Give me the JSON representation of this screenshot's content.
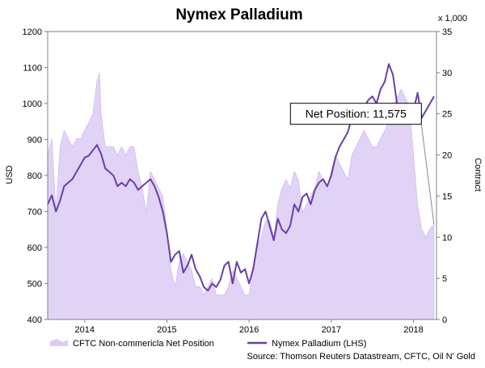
{
  "chart_data": {
    "type": "line",
    "title": "Nymex Palladium",
    "ylabel": "USD",
    "y2label": "Contract",
    "y2unit": "x 1,000",
    "ylim": [
      400,
      1200
    ],
    "yticks": [
      400,
      500,
      600,
      700,
      800,
      900,
      1000,
      1100,
      1200
    ],
    "y2lim": [
      0,
      35
    ],
    "y2ticks": [
      0,
      5,
      10,
      15,
      20,
      25,
      30,
      35
    ],
    "xlim": [
      2013.55,
      2018.28
    ],
    "xticks": [
      {
        "x": 2014.0,
        "label": "2014"
      },
      {
        "x": 2015.0,
        "label": "2015"
      },
      {
        "x": 2016.0,
        "label": "2016"
      },
      {
        "x": 2017.0,
        "label": "2017"
      },
      {
        "x": 2018.0,
        "label": "2018"
      }
    ],
    "grid": false,
    "legend_position": "bottom",
    "annotation": {
      "text": "Net Position: 11,575",
      "target": [
        2018.25,
        11.575
      ],
      "label_anchor": [
        2017.3,
        25
      ]
    },
    "source": "Source: Thomson Reuters Datastream, CFTC, Oil N' Gold",
    "series": [
      {
        "name": "CFTC Non-commericla Net Position",
        "type": "area",
        "axis": "right",
        "color": "#dccbf5",
        "x": [
          2013.55,
          2013.6,
          2013.65,
          2013.7,
          2013.75,
          2013.8,
          2013.85,
          2013.9,
          2013.95,
          2014.0,
          2014.05,
          2014.1,
          2014.15,
          2014.18,
          2014.2,
          2014.25,
          2014.3,
          2014.35,
          2014.4,
          2014.45,
          2014.5,
          2014.55,
          2014.6,
          2014.65,
          2014.7,
          2014.75,
          2014.8,
          2014.85,
          2014.9,
          2014.95,
          2015.0,
          2015.05,
          2015.1,
          2015.15,
          2015.2,
          2015.25,
          2015.3,
          2015.35,
          2015.4,
          2015.45,
          2015.5,
          2015.55,
          2015.6,
          2015.65,
          2015.7,
          2015.75,
          2015.8,
          2015.85,
          2015.9,
          2015.95,
          2016.0,
          2016.05,
          2016.1,
          2016.15,
          2016.2,
          2016.25,
          2016.3,
          2016.35,
          2016.4,
          2016.45,
          2016.5,
          2016.55,
          2016.6,
          2016.65,
          2016.7,
          2016.75,
          2016.8,
          2016.85,
          2016.9,
          2016.95,
          2017.0,
          2017.05,
          2017.1,
          2017.15,
          2017.2,
          2017.25,
          2017.3,
          2017.35,
          2017.4,
          2017.45,
          2017.5,
          2017.55,
          2017.6,
          2017.65,
          2017.7,
          2017.75,
          2017.8,
          2017.85,
          2017.9,
          2017.95,
          2018.0,
          2018.05,
          2018.1,
          2018.15,
          2018.2,
          2018.25
        ],
        "values": [
          20,
          22,
          13,
          21,
          23,
          22,
          21,
          22,
          22,
          23,
          24,
          25,
          29,
          30,
          25,
          21,
          21,
          21,
          20,
          21,
          20,
          21,
          21,
          18,
          16,
          13,
          18,
          17,
          16,
          15,
          11,
          6,
          4,
          7,
          8,
          7,
          6,
          4,
          4,
          3,
          4,
          5,
          3,
          3,
          3,
          4,
          6,
          5,
          4,
          3,
          3,
          6,
          9,
          10,
          12,
          12,
          10,
          14,
          16,
          17,
          16,
          18,
          17,
          13,
          14,
          15,
          16,
          18,
          17,
          16,
          18,
          20,
          19,
          18,
          17,
          20,
          21,
          22,
          23,
          22,
          21,
          21,
          22,
          23,
          24,
          26,
          27,
          28,
          27,
          26,
          20,
          14,
          11,
          10,
          11,
          11.575
        ]
      },
      {
        "name": "Nymex Palladium (LHS)",
        "type": "line",
        "axis": "left",
        "color": "#6a3fa6",
        "x": [
          2013.55,
          2013.6,
          2013.65,
          2013.7,
          2013.75,
          2013.8,
          2013.85,
          2013.9,
          2013.95,
          2014.0,
          2014.05,
          2014.1,
          2014.15,
          2014.2,
          2014.25,
          2014.3,
          2014.35,
          2014.4,
          2014.45,
          2014.5,
          2014.55,
          2014.6,
          2014.65,
          2014.7,
          2014.75,
          2014.8,
          2014.85,
          2014.9,
          2014.95,
          2015.0,
          2015.05,
          2015.1,
          2015.15,
          2015.2,
          2015.25,
          2015.3,
          2015.35,
          2015.4,
          2015.45,
          2015.5,
          2015.55,
          2015.6,
          2015.65,
          2015.7,
          2015.75,
          2015.8,
          2015.85,
          2015.9,
          2015.95,
          2016.0,
          2016.05,
          2016.1,
          2016.15,
          2016.2,
          2016.25,
          2016.3,
          2016.35,
          2016.4,
          2016.45,
          2016.5,
          2016.55,
          2016.6,
          2016.65,
          2016.7,
          2016.75,
          2016.8,
          2016.85,
          2016.9,
          2016.95,
          2017.0,
          2017.05,
          2017.1,
          2017.15,
          2017.2,
          2017.25,
          2017.3,
          2017.35,
          2017.4,
          2017.45,
          2017.5,
          2017.55,
          2017.6,
          2017.65,
          2017.7,
          2017.75,
          2017.8,
          2017.85,
          2017.9,
          2017.95,
          2018.0,
          2018.05,
          2018.1,
          2018.15,
          2018.2,
          2018.25
        ],
        "values": [
          720,
          745,
          700,
          730,
          770,
          780,
          790,
          810,
          830,
          850,
          855,
          870,
          885,
          860,
          820,
          810,
          800,
          770,
          780,
          770,
          790,
          780,
          760,
          770,
          780,
          790,
          770,
          740,
          700,
          640,
          560,
          580,
          590,
          530,
          550,
          580,
          540,
          520,
          490,
          480,
          500,
          490,
          510,
          550,
          560,
          500,
          560,
          530,
          540,
          500,
          540,
          610,
          680,
          700,
          660,
          620,
          680,
          650,
          640,
          660,
          720,
          700,
          740,
          750,
          720,
          760,
          780,
          790,
          770,
          800,
          850,
          880,
          900,
          920,
          960,
          950,
          970,
          990,
          1010,
          1020,
          1000,
          1040,
          1060,
          1110,
          1080,
          1000,
          960,
          1000,
          950,
          980,
          1030,
          960,
          980,
          1000,
          1020
        ]
      }
    ]
  }
}
